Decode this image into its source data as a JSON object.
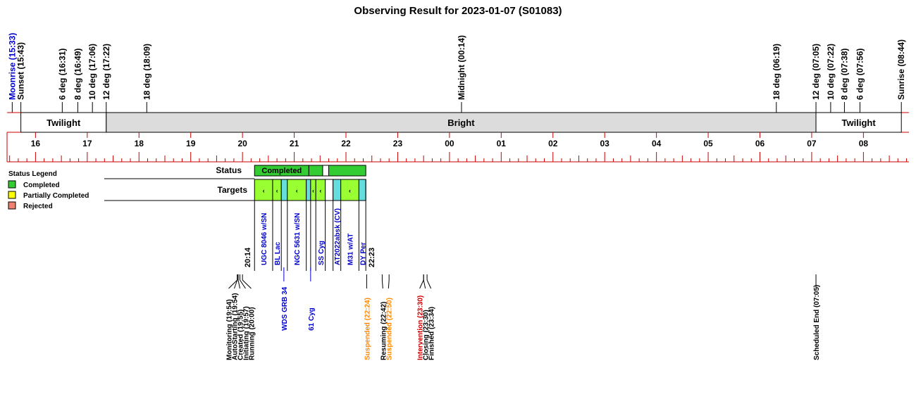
{
  "chart_data": {
    "type": "timeline",
    "title": "Observing Result for 2023-01-07 (S01083)",
    "axis": {
      "start_hour": 15.45,
      "end_hour": 32.88,
      "hour_labels": [
        "16",
        "17",
        "18",
        "19",
        "20",
        "21",
        "22",
        "23",
        "00",
        "01",
        "02",
        "03",
        "04",
        "05",
        "06",
        "07",
        "08"
      ]
    },
    "twilight_events": [
      {
        "label": "Moonrise (15:33)",
        "time": 15.55,
        "color": "#0000cc"
      },
      {
        "label": "Sunset (15:43)",
        "time": 15.717,
        "color": "#000000"
      },
      {
        "label": "6 deg (16:31)",
        "time": 16.517,
        "color": "#000000"
      },
      {
        "label": "8 deg (16:49)",
        "time": 16.817,
        "color": "#000000"
      },
      {
        "label": "10 deg (17:06)",
        "time": 17.1,
        "color": "#000000"
      },
      {
        "label": "12 deg (17:22)",
        "time": 17.367,
        "color": "#000000"
      },
      {
        "label": "18 deg (18:09)",
        "time": 18.15,
        "color": "#000000"
      },
      {
        "label": "Midnight (00:14)",
        "time": 24.233,
        "color": "#000000"
      },
      {
        "label": "18 deg (06:19)",
        "time": 30.317,
        "color": "#000000"
      },
      {
        "label": "12 deg (07:05)",
        "time": 31.083,
        "color": "#000000"
      },
      {
        "label": "10 deg (07:22)",
        "time": 31.367,
        "color": "#000000"
      },
      {
        "label": "8 deg (07:38)",
        "time": 31.633,
        "color": "#000000"
      },
      {
        "label": "6 deg (07:56)",
        "time": 31.933,
        "color": "#000000"
      },
      {
        "label": "Sunrise (08:44)",
        "time": 32.733,
        "color": "#000000"
      }
    ],
    "bands": [
      {
        "label": "Twilight",
        "start": 15.717,
        "end": 17.367,
        "fill": "#ffffff"
      },
      {
        "label": "Bright",
        "start": 17.367,
        "end": 31.083,
        "fill": "#dcdcdc"
      },
      {
        "label": "Twilight",
        "start": 31.083,
        "end": 32.733,
        "fill": "#ffffff"
      }
    ],
    "status_label": "Status",
    "status_segments": [
      {
        "label": "Completed",
        "start": 20.233,
        "end": 21.283,
        "fill": "#33cc33"
      },
      {
        "label": "",
        "start": 21.283,
        "end": 21.55,
        "fill": "#33cc33"
      },
      {
        "label": "",
        "start": 21.55,
        "end": 21.667,
        "fill": "#ffffff"
      },
      {
        "label": "",
        "start": 21.667,
        "end": 22.383,
        "fill": "#33cc33"
      }
    ],
    "targets_label": "Targets",
    "targets": [
      {
        "label": "UGC 8046 w/SN",
        "start": 20.233,
        "end": 20.583,
        "fill": "#99ff33",
        "mark": "‹",
        "color": "#0000cc"
      },
      {
        "label": "BL Lac",
        "start": 20.583,
        "end": 20.75,
        "fill": "#99ff33",
        "mark": "‹",
        "color": "#0000cc"
      },
      {
        "label": "",
        "start": 20.75,
        "end": 20.867,
        "fill": "#66dddd",
        "mark": "",
        "color": "#0000cc"
      },
      {
        "label": "NGC 5631 w/SN",
        "start": 20.867,
        "end": 21.233,
        "fill": "#99ff33",
        "mark": "‹",
        "color": "#0000cc"
      },
      {
        "label": "",
        "start": 21.233,
        "end": 21.317,
        "fill": "#66dddd",
        "mark": "",
        "color": "#0000cc"
      },
      {
        "label": "",
        "start": 21.317,
        "end": 21.417,
        "fill": "#99ff33",
        "mark": "‹",
        "color": "#0000cc"
      },
      {
        "label": "SS Cyg",
        "start": 21.417,
        "end": 21.6,
        "fill": "#99ff33",
        "mark": "‹",
        "color": "#0000cc"
      },
      {
        "label": "",
        "start": 21.6,
        "end": 21.75,
        "fill": "#ffffff",
        "mark": "",
        "color": "#0000cc"
      },
      {
        "label": "AT2022absk (CV)",
        "start": 21.75,
        "end": 21.9,
        "fill": "#66dddd",
        "mark": "",
        "color": "#0000cc"
      },
      {
        "label": "M31 w/AT",
        "start": 21.9,
        "end": 22.25,
        "fill": "#99ff33",
        "mark": "‹",
        "color": "#0000cc"
      },
      {
        "label": "DY Per",
        "start": 22.25,
        "end": 22.383,
        "fill": "#66dddd",
        "mark": "",
        "color": "#0000cc"
      }
    ],
    "boundary_labels": [
      {
        "label": "20:14",
        "time": 20.233
      },
      {
        "label": "22:23",
        "time": 22.383
      }
    ],
    "extra_targets": [
      {
        "label": "WDS GRB 34",
        "time": 20.8,
        "color": "#0000cc"
      },
      {
        "label": "61 Cyg",
        "time": 21.317,
        "color": "#0000cc"
      }
    ],
    "events": [
      {
        "label": "Monitoring (19:54)",
        "time": 19.9,
        "color": "#000000"
      },
      {
        "label": "AutoStarting (19:54)",
        "time": 19.9,
        "color": "#000000"
      },
      {
        "label": "Created (19:55)",
        "time": 19.917,
        "color": "#000000"
      },
      {
        "label": "Initiating (19:57)",
        "time": 19.95,
        "color": "#000000"
      },
      {
        "label": "Running (20:00)",
        "time": 20.0,
        "color": "#000000"
      },
      {
        "label": "Suspended (22:24)",
        "time": 22.4,
        "color": "#ff8800"
      },
      {
        "label": "Resuming (22:42)",
        "time": 22.7,
        "color": "#000000"
      },
      {
        "label": "Suspended (22:50)",
        "time": 22.833,
        "color": "#ff8800"
      },
      {
        "label": "Intervention (23:30)",
        "time": 23.5,
        "color": "#cc0000"
      },
      {
        "label": "Closing (23:30)",
        "time": 23.5,
        "color": "#000000"
      },
      {
        "label": "Finished (23:34)",
        "time": 23.567,
        "color": "#000000"
      },
      {
        "label": "Scheduled End (07:05)",
        "time": 31.083,
        "color": "#000000"
      }
    ],
    "legend": {
      "title": "Status Legend",
      "items": [
        {
          "label": "Completed",
          "color": "#33cc33"
        },
        {
          "label": "Partially Completed",
          "color": "#ffff00"
        },
        {
          "label": "Rejected",
          "color": "#f08070"
        }
      ]
    },
    "colors": {
      "axis": "#cc0000",
      "bright_band": "#dcdcdc",
      "moonrise": "#0000cc",
      "target_text": "#0000cc",
      "suspended": "#ff8800",
      "intervention": "#cc0000"
    }
  }
}
